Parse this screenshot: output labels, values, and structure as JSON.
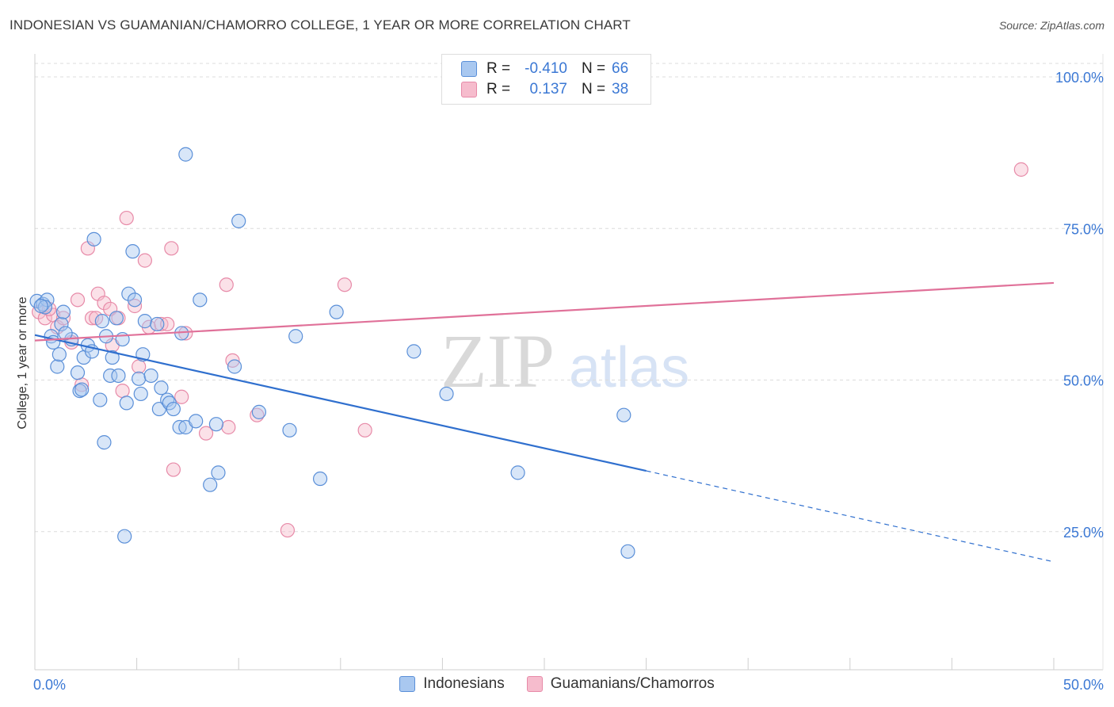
{
  "title": "INDONESIAN VS GUAMANIAN/CHAMORRO COLLEGE, 1 YEAR OR MORE CORRELATION CHART",
  "source": "Source: ZipAtlas.com",
  "watermark": {
    "zip": "ZIP",
    "atlas": "atlas"
  },
  "legend": {
    "rows": [
      {
        "r_label": "R =",
        "r_value": "-0.410",
        "n_label": "N =",
        "n_value": "66"
      },
      {
        "r_label": "R =",
        "r_value": "0.137",
        "n_label": "N =",
        "n_value": "38"
      }
    ]
  },
  "bottom_legend": {
    "series1": "Indonesians",
    "series2": "Guamanians/Chamorros"
  },
  "colors": {
    "blue_fill": "#a9c8f0",
    "blue_stroke": "#5a8fd8",
    "blue_line": "#2f6fce",
    "pink_fill": "#f6bccd",
    "pink_stroke": "#e78aa8",
    "pink_line": "#e07199",
    "tick_text": "#3b78d4",
    "grid": "#dcdcdc"
  },
  "chart_data": {
    "type": "scatter",
    "title": "INDONESIAN VS GUAMANIAN/CHAMORRO COLLEGE, 1 YEAR OR MORE CORRELATION CHART",
    "xlabel": "",
    "ylabel": "College, 1 year or more",
    "xlim": [
      0,
      50
    ],
    "ylim": [
      0,
      102
    ],
    "x_tick_labels": [
      {
        "value": 0,
        "label": "0.0%"
      },
      {
        "value": 50,
        "label": "50.0%"
      }
    ],
    "y_tick_labels": [
      {
        "value": 100,
        "label": "100.0%"
      },
      {
        "value": 75,
        "label": "75.0%"
      },
      {
        "value": 50,
        "label": "50.0%"
      },
      {
        "value": 25,
        "label": "25.0%"
      }
    ],
    "series": [
      {
        "name": "Indonesians",
        "r": -0.41,
        "n": 66,
        "trend": {
          "x0": 0,
          "y0": 55.2,
          "x1": 30,
          "y1": 32.8,
          "dash_to_x": 50,
          "dash_to_y": 17.8
        },
        "points": [
          [
            0.1,
            60.8
          ],
          [
            0.4,
            60.3
          ],
          [
            0.6,
            61.0
          ],
          [
            0.5,
            59.8
          ],
          [
            0.8,
            55.0
          ],
          [
            0.9,
            54.0
          ],
          [
            1.1,
            50.0
          ],
          [
            1.2,
            52.0
          ],
          [
            1.3,
            57.0
          ],
          [
            1.4,
            59.0
          ],
          [
            1.8,
            54.5
          ],
          [
            2.1,
            49.0
          ],
          [
            2.2,
            46.0
          ],
          [
            2.3,
            46.2
          ],
          [
            2.4,
            51.5
          ],
          [
            2.6,
            53.5
          ],
          [
            2.8,
            52.5
          ],
          [
            2.9,
            71.0
          ],
          [
            3.2,
            44.5
          ],
          [
            3.3,
            57.5
          ],
          [
            3.4,
            37.5
          ],
          [
            3.5,
            55.0
          ],
          [
            3.7,
            48.5
          ],
          [
            3.8,
            51.5
          ],
          [
            4.0,
            58.0
          ],
          [
            4.1,
            48.5
          ],
          [
            4.3,
            54.5
          ],
          [
            4.4,
            22.0
          ],
          [
            4.5,
            44.0
          ],
          [
            4.6,
            62.0
          ],
          [
            4.8,
            69.0
          ],
          [
            4.9,
            61.0
          ],
          [
            5.1,
            48.0
          ],
          [
            5.2,
            45.5
          ],
          [
            5.3,
            52.0
          ],
          [
            5.4,
            57.5
          ],
          [
            5.7,
            48.5
          ],
          [
            6.0,
            57.0
          ],
          [
            6.1,
            43.0
          ],
          [
            6.2,
            46.5
          ],
          [
            6.5,
            44.5
          ],
          [
            6.6,
            44.0
          ],
          [
            6.8,
            43.0
          ],
          [
            7.1,
            40.0
          ],
          [
            7.2,
            55.5
          ],
          [
            7.4,
            40.0
          ],
          [
            7.4,
            85.0
          ],
          [
            7.9,
            41.0
          ],
          [
            8.1,
            61.0
          ],
          [
            8.6,
            30.5
          ],
          [
            8.9,
            40.5
          ],
          [
            9.0,
            32.5
          ],
          [
            9.8,
            50.0
          ],
          [
            10.0,
            74.0
          ],
          [
            11.0,
            42.5
          ],
          [
            12.5,
            39.5
          ],
          [
            12.8,
            55.0
          ],
          [
            14.0,
            31.5
          ],
          [
            14.8,
            59.0
          ],
          [
            18.6,
            52.5
          ],
          [
            20.2,
            45.5
          ],
          [
            23.7,
            32.5
          ],
          [
            28.9,
            42.0
          ],
          [
            29.1,
            19.5
          ],
          [
            1.5,
            55.5
          ],
          [
            0.3,
            60.0
          ]
        ]
      },
      {
        "name": "Guamanians/Chamorros",
        "r": 0.137,
        "n": 38,
        "trend": {
          "x0": 0,
          "y0": 54.3,
          "x1": 50,
          "y1": 63.8
        },
        "points": [
          [
            0.2,
            59.0
          ],
          [
            0.5,
            58.0
          ],
          [
            0.9,
            58.5
          ],
          [
            1.1,
            56.5
          ],
          [
            1.4,
            58.0
          ],
          [
            1.8,
            54.0
          ],
          [
            2.1,
            61.0
          ],
          [
            2.3,
            47.0
          ],
          [
            2.6,
            69.5
          ],
          [
            2.8,
            58.0
          ],
          [
            3.1,
            62.0
          ],
          [
            3.4,
            60.5
          ],
          [
            3.7,
            59.5
          ],
          [
            3.8,
            53.5
          ],
          [
            4.1,
            58.0
          ],
          [
            4.3,
            46.0
          ],
          [
            4.5,
            74.5
          ],
          [
            4.9,
            60.0
          ],
          [
            5.1,
            50.0
          ],
          [
            5.4,
            67.5
          ],
          [
            5.6,
            56.5
          ],
          [
            6.2,
            57.0
          ],
          [
            6.5,
            57.0
          ],
          [
            6.7,
            69.5
          ],
          [
            6.8,
            33.0
          ],
          [
            7.2,
            45.0
          ],
          [
            7.4,
            55.5
          ],
          [
            8.4,
            39.0
          ],
          [
            9.4,
            63.5
          ],
          [
            9.5,
            40.0
          ],
          [
            9.7,
            51.0
          ],
          [
            10.9,
            42.0
          ],
          [
            12.4,
            23.0
          ],
          [
            15.2,
            63.5
          ],
          [
            16.2,
            39.5
          ],
          [
            48.4,
            82.5
          ],
          [
            0.7,
            59.5
          ],
          [
            3.0,
            58.0
          ]
        ]
      }
    ]
  }
}
